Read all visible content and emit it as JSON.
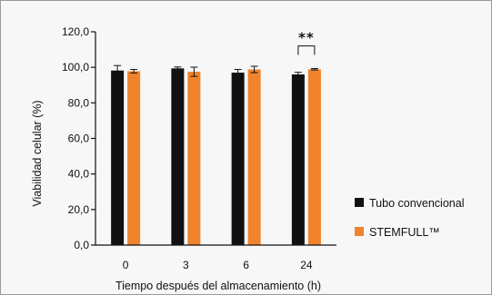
{
  "chart_data": {
    "type": "bar",
    "xlabel": "Tiempo después del almacenamiento (h)",
    "ylabel": "Viabilidad celular (%)",
    "categories": [
      "0",
      "3",
      "6",
      "24"
    ],
    "series": [
      {
        "name": "Tubo convencional",
        "color": "#111111",
        "values": [
          98.2,
          99.4,
          97.0,
          96.0
        ],
        "errors": [
          2.8,
          0.8,
          1.8,
          1.2
        ]
      },
      {
        "name": "STEMFULL™",
        "color": "#f0832c",
        "values": [
          97.8,
          97.5,
          98.8,
          98.9
        ],
        "errors": [
          1.0,
          2.6,
          1.8,
          0.4
        ]
      }
    ],
    "ylim": [
      0,
      120
    ],
    "yticks": [
      "0,0",
      "20,0",
      "40,0",
      "60,0",
      "80,0",
      "100,0",
      "120,0"
    ],
    "yticks_values": [
      0,
      20,
      40,
      60,
      80,
      100,
      120
    ],
    "grid": false,
    "legend_position": "right",
    "annotations": [
      {
        "text": "**",
        "category": "24"
      }
    ]
  }
}
